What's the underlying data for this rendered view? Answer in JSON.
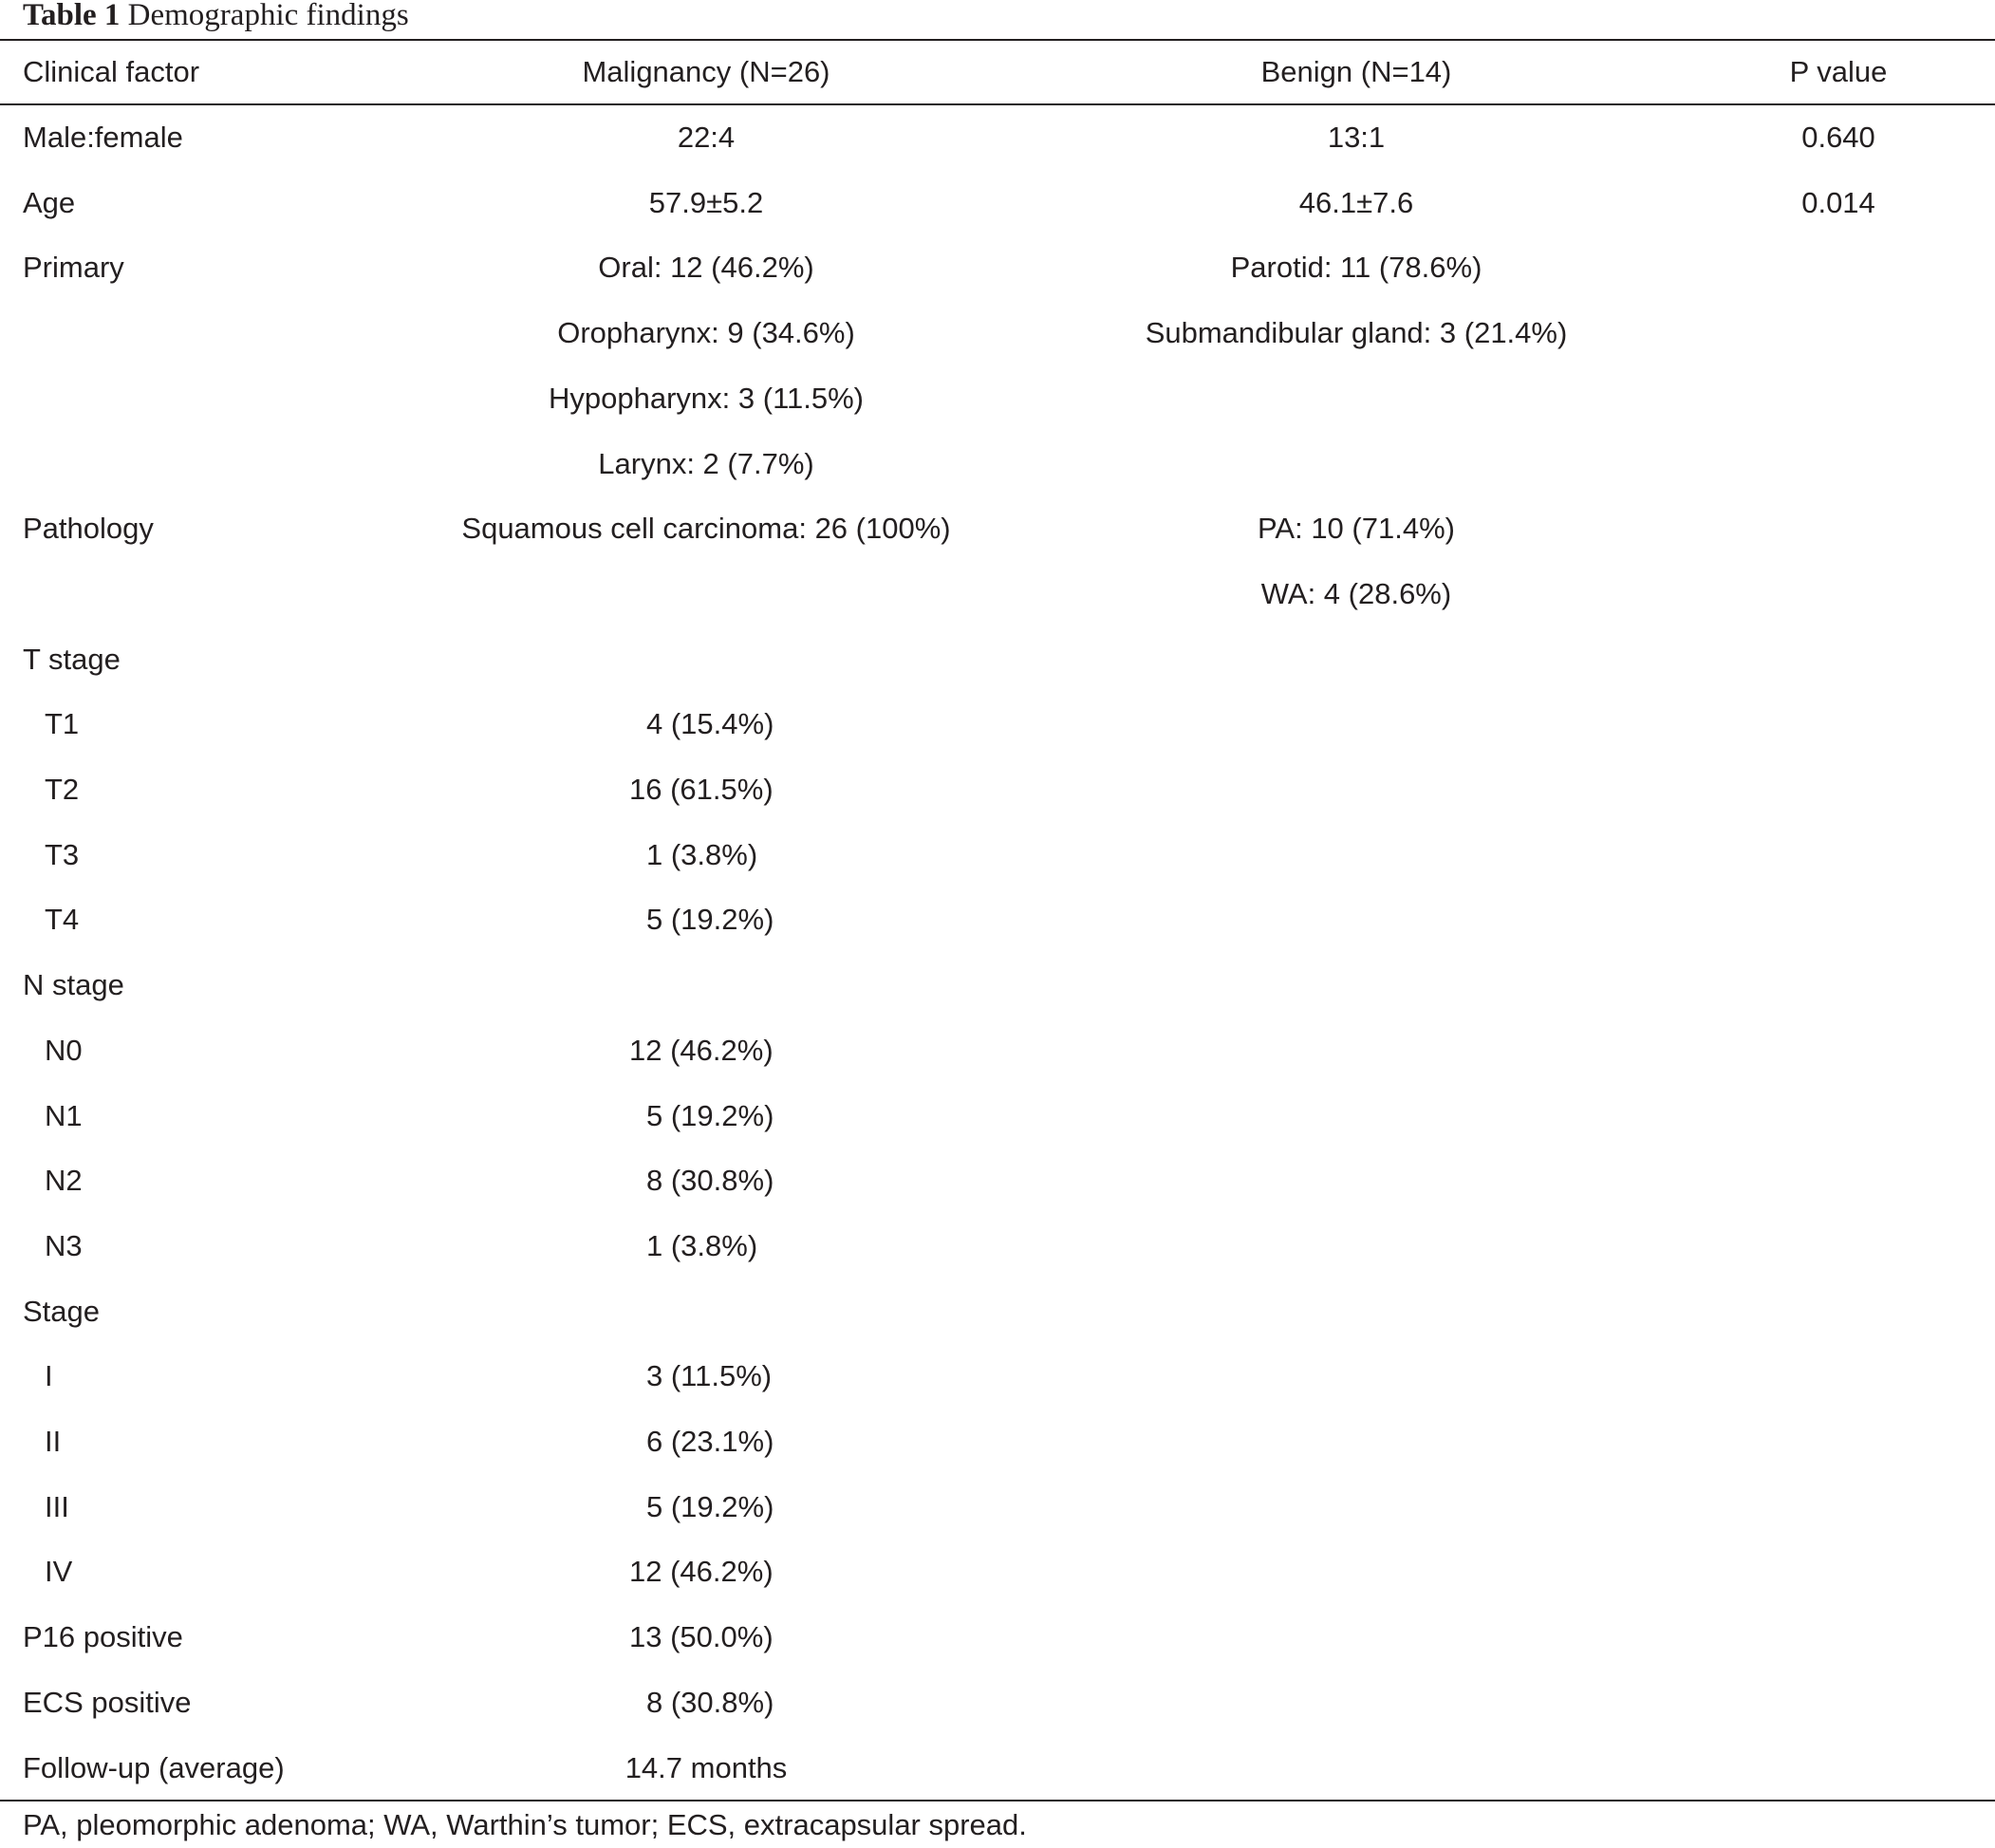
{
  "caption": {
    "label": "Table 1",
    "text": "Demographic findings"
  },
  "header": {
    "factor": "Clinical factor",
    "malignancy": "Malignancy (N=26)",
    "benign": "Benign (N=14)",
    "pvalue": "P value"
  },
  "rows": [
    {
      "factor": "Male:female",
      "malignancy": "22:4",
      "benign": "13:1",
      "pvalue": "0.640"
    },
    {
      "factor": "Age",
      "malignancy": "57.9±5.2",
      "benign": "46.1±7.6",
      "pvalue": "0.014"
    },
    {
      "factor": "Primary",
      "malignancy": "Oral: 12 (46.2%)",
      "benign": "Parotid: 11 (78.6%)",
      "pvalue": ""
    },
    {
      "factor": "",
      "malignancy": "Oropharynx: 9 (34.6%)",
      "benign": "Submandibular gland: 3 (21.4%)",
      "pvalue": ""
    },
    {
      "factor": "",
      "malignancy": "Hypopharynx: 3 (11.5%)",
      "benign": "",
      "pvalue": ""
    },
    {
      "factor": "",
      "malignancy": "Larynx: 2 (7.7%)",
      "benign": "",
      "pvalue": ""
    },
    {
      "factor": "Pathology",
      "malignancy": "Squamous cell carcinoma: 26 (100%)",
      "benign": "PA: 10 (71.4%)",
      "pvalue": ""
    },
    {
      "factor": "",
      "malignancy": "",
      "benign": "WA: 4 (28.6%)",
      "pvalue": ""
    },
    {
      "factor": "T stage",
      "malignancy": "",
      "benign": "",
      "pvalue": ""
    },
    {
      "factor": "T1",
      "malignancy": "4 (15.4%)",
      "benign": "",
      "pvalue": ""
    },
    {
      "factor": "T2",
      "malignancy": "16 (61.5%)",
      "benign": "",
      "pvalue": ""
    },
    {
      "factor": "T3",
      "malignancy": "1 (3.8%)",
      "benign": "",
      "pvalue": ""
    },
    {
      "factor": "T4",
      "malignancy": "5 (19.2%)",
      "benign": "",
      "pvalue": ""
    },
    {
      "factor": "N stage",
      "malignancy": "",
      "benign": "",
      "pvalue": ""
    },
    {
      "factor": "N0",
      "malignancy": "12 (46.2%)",
      "benign": "",
      "pvalue": ""
    },
    {
      "factor": "N1",
      "malignancy": "5 (19.2%)",
      "benign": "",
      "pvalue": ""
    },
    {
      "factor": "N2",
      "malignancy": "8 (30.8%)",
      "benign": "",
      "pvalue": ""
    },
    {
      "factor": "N3",
      "malignancy": "1 (3.8%)",
      "benign": "",
      "pvalue": ""
    },
    {
      "factor": "Stage",
      "malignancy": "",
      "benign": "",
      "pvalue": ""
    },
    {
      "factor": "I",
      "malignancy": "3 (11.5%)",
      "benign": "",
      "pvalue": ""
    },
    {
      "factor": "II",
      "malignancy": "6 (23.1%)",
      "benign": "",
      "pvalue": ""
    },
    {
      "factor": "III",
      "malignancy": "5 (19.2%)",
      "benign": "",
      "pvalue": ""
    },
    {
      "factor": "IV",
      "malignancy": "12 (46.2%)",
      "benign": "",
      "pvalue": ""
    },
    {
      "factor": "P16 positive",
      "malignancy": "13 (50.0%)",
      "benign": "",
      "pvalue": ""
    },
    {
      "factor": "ECS positive",
      "malignancy": "8 (30.8%)",
      "benign": "",
      "pvalue": ""
    },
    {
      "factor": "Follow-up (average)",
      "malignancy": "14.7 months",
      "benign": "",
      "pvalue": ""
    }
  ],
  "footnote": "PA, pleomorphic adenoma; WA, Warthin’s tumor; ECS, extracapsular spread."
}
